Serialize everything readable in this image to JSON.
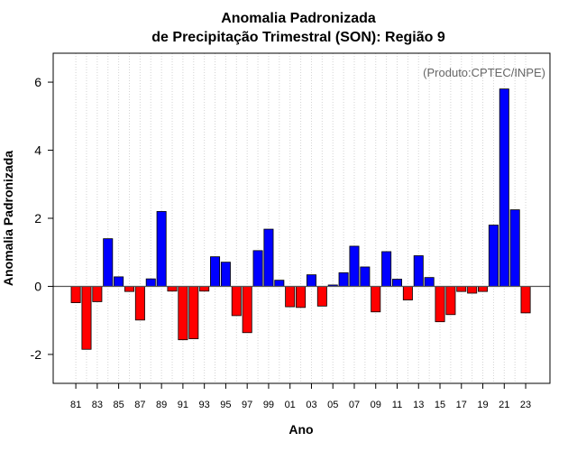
{
  "chart_data": {
    "type": "bar",
    "title": [
      "Anomalia Padronizada",
      "de Precipitação Trimestral (SON): Região 9"
    ],
    "annotation": "(Produto:CPTEC/INPE)",
    "xlabel": "Ano",
    "ylabel": "Anomalia Padronizada",
    "ylim": [
      -2.85,
      6.85
    ],
    "yticks": [
      -2,
      0,
      2,
      4,
      6
    ],
    "grid": "vertical-dotted",
    "colors": {
      "positive": "#0000ff",
      "negative": "#ff0000",
      "zero_line": "#555555"
    },
    "categories": [
      "81",
      "82",
      "83",
      "84",
      "85",
      "86",
      "87",
      "88",
      "89",
      "90",
      "91",
      "92",
      "93",
      "94",
      "95",
      "96",
      "97",
      "98",
      "99",
      "00",
      "01",
      "02",
      "03",
      "04",
      "05",
      "06",
      "07",
      "08",
      "09",
      "10",
      "11",
      "12",
      "13",
      "14",
      "15",
      "16",
      "17",
      "18",
      "19",
      "20",
      "21",
      "22",
      "23"
    ],
    "xtick_labels": [
      "81",
      "83",
      "85",
      "87",
      "89",
      "91",
      "93",
      "95",
      "97",
      "99",
      "01",
      "03",
      "05",
      "07",
      "09",
      "11",
      "13",
      "15",
      "17",
      "19",
      "21",
      "23"
    ],
    "values": [
      -0.48,
      -1.85,
      -0.45,
      1.4,
      0.28,
      -0.15,
      -0.99,
      0.22,
      2.2,
      -0.14,
      -1.57,
      -1.54,
      -0.14,
      0.87,
      0.71,
      -0.86,
      -1.36,
      1.05,
      1.68,
      0.18,
      -0.6,
      -0.62,
      0.34,
      -0.58,
      0.04,
      0.4,
      1.18,
      0.57,
      -0.75,
      1.02,
      0.21,
      -0.4,
      0.9,
      0.26,
      -1.04,
      -0.83,
      -0.15,
      -0.2,
      -0.15,
      1.8,
      5.8,
      2.25,
      -0.78
    ]
  }
}
